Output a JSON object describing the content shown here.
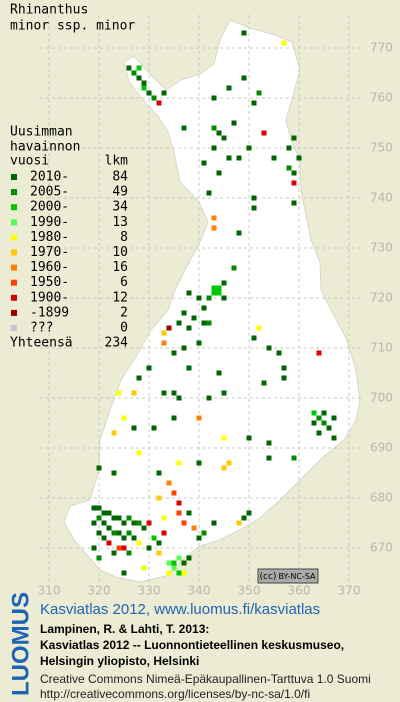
{
  "title": [
    "Rhinanthus",
    "minor ssp. minor"
  ],
  "legend": {
    "heading": [
      "Uusimman",
      "havainnon",
      "vuosi"
    ],
    "count_heading": "lkm",
    "rows": [
      {
        "label": "2010-",
        "count": 84,
        "color": "#006400"
      },
      {
        "label": "2005-",
        "count": 49,
        "color": "#008a00"
      },
      {
        "label": "2000-",
        "count": 34,
        "color": "#00c800"
      },
      {
        "label": "1990-",
        "count": 13,
        "color": "#50ff50"
      },
      {
        "label": "1980-",
        "count": 8,
        "color": "#ffff00"
      },
      {
        "label": "1970-",
        "count": 10,
        "color": "#ffc800"
      },
      {
        "label": "1960-",
        "count": 16,
        "color": "#ff8000"
      },
      {
        "label": "1950-",
        "count": 6,
        "color": "#ff4000"
      },
      {
        "label": "1900-",
        "count": 12,
        "color": "#dc0000"
      },
      {
        "label": "-1899",
        "count": 2,
        "color": "#a00000"
      },
      {
        "label": "???",
        "count": 0,
        "color": "#c8c8c8"
      }
    ],
    "total_label": "Yhteensä",
    "total": 234
  },
  "xticks": [
    310,
    320,
    330,
    340,
    350,
    360,
    370
  ],
  "yticks": [
    670,
    680,
    690,
    700,
    710,
    720,
    730,
    740,
    750,
    760,
    770
  ],
  "squares": [
    [
      349,
      773,
      0
    ],
    [
      357,
      771,
      4
    ],
    [
      326,
      766,
      0
    ],
    [
      327,
      765,
      1
    ],
    [
      328,
      764,
      0
    ],
    [
      329,
      763,
      0
    ],
    [
      329,
      762,
      2
    ],
    [
      330,
      761,
      0
    ],
    [
      331,
      760,
      1
    ],
    [
      328,
      766,
      2
    ],
    [
      332,
      759,
      8
    ],
    [
      333,
      761,
      0
    ],
    [
      346,
      762,
      0
    ],
    [
      343,
      760,
      0
    ],
    [
      349,
      764,
      0
    ],
    [
      351,
      759,
      0
    ],
    [
      352,
      761,
      1
    ],
    [
      337,
      754,
      0
    ],
    [
      343,
      754,
      1
    ],
    [
      344,
      753,
      0
    ],
    [
      345,
      752,
      0
    ],
    [
      347,
      755,
      0
    ],
    [
      343,
      750,
      0
    ],
    [
      341,
      747,
      0
    ],
    [
      346,
      748,
      0
    ],
    [
      348,
      748,
      0
    ],
    [
      353,
      753,
      8
    ],
    [
      350,
      750,
      0
    ],
    [
      359,
      752,
      0
    ],
    [
      358,
      750,
      0
    ],
    [
      359,
      745,
      0
    ],
    [
      359,
      743,
      8
    ],
    [
      360,
      748,
      0
    ],
    [
      355,
      748,
      0
    ],
    [
      358,
      746,
      1
    ],
    [
      344,
      745,
      0
    ],
    [
      342,
      741,
      0
    ],
    [
      351,
      740,
      0
    ],
    [
      351,
      738,
      0
    ],
    [
      348,
      733,
      0
    ],
    [
      343,
      736,
      6
    ],
    [
      343,
      734,
      6
    ],
    [
      359,
      739,
      0
    ],
    [
      347,
      726,
      1
    ],
    [
      345,
      723,
      0
    ],
    [
      343,
      722,
      2
    ],
    [
      344,
      722,
      2
    ],
    [
      343,
      721,
      2
    ],
    [
      344,
      721,
      2
    ],
    [
      342,
      720,
      1
    ],
    [
      345,
      720,
      0
    ],
    [
      340,
      720,
      0
    ],
    [
      338,
      721,
      0
    ],
    [
      341,
      718,
      0
    ],
    [
      339,
      716,
      0
    ],
    [
      337,
      717,
      0
    ],
    [
      336,
      715,
      0
    ],
    [
      334,
      714,
      9
    ],
    [
      338,
      714,
      0
    ],
    [
      341,
      715,
      0
    ],
    [
      342,
      715,
      1
    ],
    [
      337,
      710,
      0
    ],
    [
      335,
      709,
      0
    ],
    [
      340,
      711,
      0
    ],
    [
      333,
      711,
      6
    ],
    [
      333,
      713,
      5
    ],
    [
      338,
      706,
      0
    ],
    [
      330,
      706,
      0
    ],
    [
      328,
      704,
      0
    ],
    [
      335,
      701,
      0
    ],
    [
      336,
      700,
      0
    ],
    [
      333,
      701,
      0
    ],
    [
      327,
      701,
      5
    ],
    [
      324,
      701,
      4
    ],
    [
      325,
      696,
      4
    ],
    [
      323,
      693,
      5
    ],
    [
      327,
      694,
      0
    ],
    [
      331,
      694,
      0
    ],
    [
      335,
      696,
      0
    ],
    [
      340,
      696,
      6
    ],
    [
      342,
      700,
      0
    ],
    [
      345,
      701,
      0
    ],
    [
      352,
      714,
      4
    ],
    [
      351,
      712,
      0
    ],
    [
      354,
      710,
      0
    ],
    [
      356,
      709,
      0
    ],
    [
      364,
      709,
      8
    ],
    [
      357,
      706,
      0
    ],
    [
      357,
      704,
      0
    ],
    [
      353,
      703,
      0
    ],
    [
      344,
      705,
      0
    ],
    [
      363,
      697,
      2
    ],
    [
      364,
      696,
      1
    ],
    [
      365,
      697,
      0
    ],
    [
      363,
      695,
      0
    ],
    [
      365,
      695,
      1
    ],
    [
      366,
      694,
      0
    ],
    [
      364,
      693,
      0
    ],
    [
      367,
      696,
      0
    ],
    [
      367,
      692,
      0
    ],
    [
      354,
      691,
      0
    ],
    [
      354,
      688,
      0
    ],
    [
      359,
      688,
      1
    ],
    [
      350,
      692,
      0
    ],
    [
      345,
      692,
      4
    ],
    [
      346,
      687,
      5
    ],
    [
      345,
      686,
      5
    ],
    [
      340,
      687,
      0
    ],
    [
      336,
      687,
      4
    ],
    [
      332,
      685,
      0
    ],
    [
      320,
      686,
      0
    ],
    [
      328,
      689,
      4
    ],
    [
      323,
      685,
      0
    ],
    [
      334,
      683,
      6
    ],
    [
      335,
      681,
      7
    ],
    [
      336,
      679,
      8
    ],
    [
      336,
      677,
      7
    ],
    [
      338,
      677,
      0
    ],
    [
      337,
      675,
      7
    ],
    [
      332,
      680,
      5
    ],
    [
      333,
      676,
      4
    ],
    [
      339,
      674,
      6
    ],
    [
      340,
      672,
      0
    ],
    [
      341,
      673,
      1
    ],
    [
      343,
      675,
      0
    ],
    [
      348,
      675,
      5
    ],
    [
      349,
      676,
      0
    ],
    [
      350,
      677,
      0
    ],
    [
      319,
      678,
      0
    ],
    [
      320,
      678,
      0
    ],
    [
      321,
      677,
      0
    ],
    [
      322,
      677,
      0
    ],
    [
      320,
      676,
      1
    ],
    [
      319,
      675,
      0
    ],
    [
      321,
      675,
      0
    ],
    [
      323,
      676,
      0
    ],
    [
      324,
      676,
      0
    ],
    [
      325,
      675,
      0
    ],
    [
      326,
      676,
      1
    ],
    [
      327,
      675,
      0
    ],
    [
      328,
      675,
      1
    ],
    [
      329,
      674,
      0
    ],
    [
      322,
      674,
      0
    ],
    [
      323,
      673,
      1
    ],
    [
      324,
      673,
      0
    ],
    [
      325,
      672,
      0
    ],
    [
      326,
      673,
      1
    ],
    [
      327,
      672,
      0
    ],
    [
      320,
      673,
      0
    ],
    [
      321,
      672,
      0
    ],
    [
      322,
      671,
      8
    ],
    [
      324,
      670,
      7
    ],
    [
      325,
      670,
      8
    ],
    [
      323,
      669,
      0
    ],
    [
      326,
      669,
      1
    ],
    [
      328,
      671,
      4
    ],
    [
      330,
      670,
      0
    ],
    [
      331,
      672,
      2
    ],
    [
      330,
      675,
      8
    ],
    [
      332,
      671,
      0
    ],
    [
      333,
      673,
      8
    ],
    [
      332,
      669,
      5
    ],
    [
      325,
      665,
      0
    ],
    [
      320,
      668,
      1
    ],
    [
      319,
      670,
      0
    ],
    [
      329,
      666,
      4
    ],
    [
      334,
      667,
      3
    ],
    [
      335,
      667,
      2
    ],
    [
      336,
      668,
      3
    ],
    [
      335,
      666,
      3
    ],
    [
      336,
      665,
      2
    ],
    [
      334,
      665,
      4
    ],
    [
      337,
      667,
      0
    ],
    [
      338,
      668,
      0
    ],
    [
      337,
      665,
      4
    ]
  ],
  "license_badge": [
    "(cc)",
    "BY-NC-SA"
  ],
  "footer": {
    "logo": "LUOMUS",
    "link": "Kasviatlas 2012, www.luomus.fi/kasviatlas",
    "citation": [
      "Lampinen, R. & Lahti, T. 2013:",
      "Kasviatlas 2012 -- Luonnontieteellinen keskusmuseo,",
      "Helsingin yliopisto, Helsinki"
    ],
    "license": [
      "Creative Commons Nimeä-Epäkaupallinen-Tarttuva 1.0 Suomi",
      "http://creativecommons.org/licenses/by-nc-sa/1.0/fi"
    ]
  }
}
